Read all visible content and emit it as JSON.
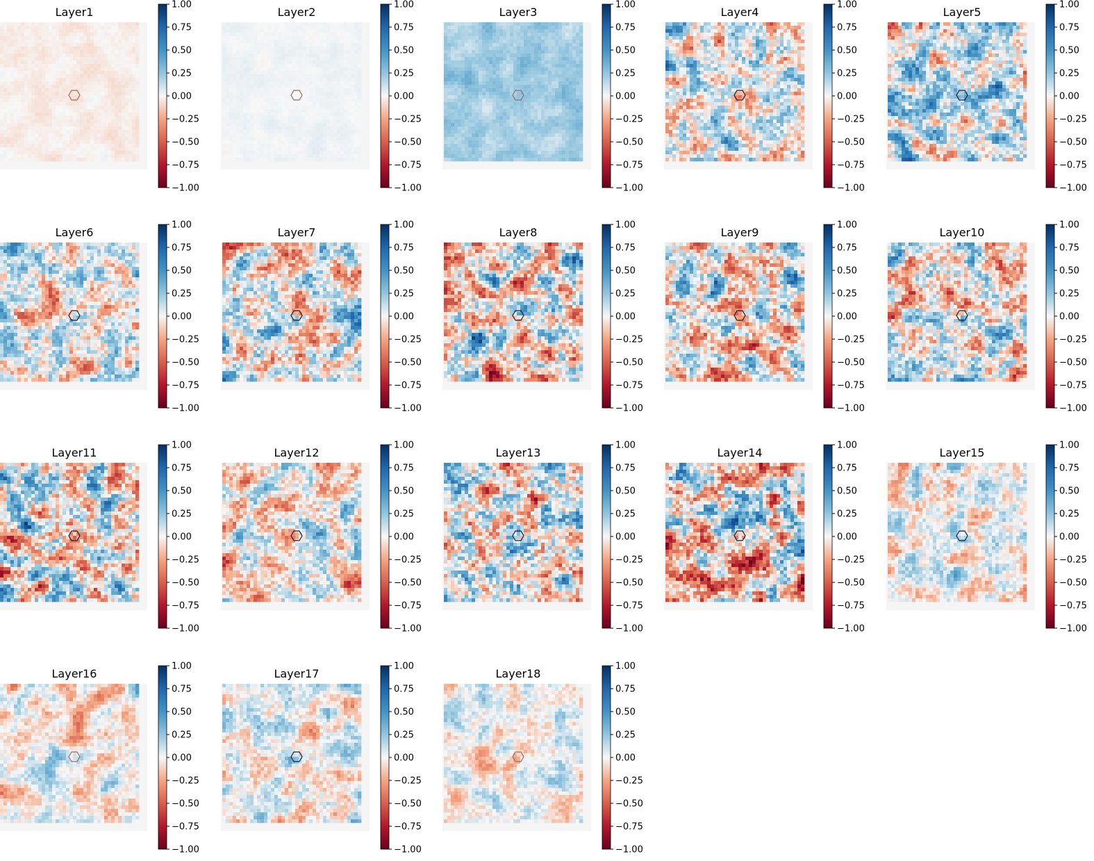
{
  "chart_data": {
    "type": "heatmap",
    "layout": {
      "rows": 4,
      "cols": 5
    },
    "colormap": "RdBu",
    "colors": {
      "negative_end": "#67001f",
      "mid": "#f7f7f7",
      "positive_end": "#053061"
    },
    "vmin": -1.0,
    "vmax": 1.0,
    "colorbar_ticks": [
      "1.00",
      "0.75",
      "0.50",
      "0.25",
      "0.00",
      "−0.25",
      "−0.50",
      "−0.75",
      "−1.00"
    ],
    "marker": "hexagon",
    "panels": [
      {
        "title": "Layer1",
        "intensity": 0.05,
        "bias": -0.1
      },
      {
        "title": "Layer2",
        "intensity": 0.03,
        "bias": 0.05
      },
      {
        "title": "Layer3",
        "intensity": 0.12,
        "bias": 0.6
      },
      {
        "title": "Layer4",
        "intensity": 0.55,
        "bias": 0.2
      },
      {
        "title": "Layer5",
        "intensity": 0.6,
        "bias": 0.4
      },
      {
        "title": "Layer6",
        "intensity": 0.55,
        "bias": 0.1
      },
      {
        "title": "Layer7",
        "intensity": 0.6,
        "bias": 0.0
      },
      {
        "title": "Layer8",
        "intensity": 0.7,
        "bias": -0.05
      },
      {
        "title": "Layer9",
        "intensity": 0.65,
        "bias": -0.05
      },
      {
        "title": "Layer10",
        "intensity": 0.65,
        "bias": -0.05
      },
      {
        "title": "Layer11",
        "intensity": 0.7,
        "bias": -0.1
      },
      {
        "title": "Layer12",
        "intensity": 0.5,
        "bias": -0.05
      },
      {
        "title": "Layer13",
        "intensity": 0.72,
        "bias": 0.0
      },
      {
        "title": "Layer14",
        "intensity": 0.75,
        "bias": 0.0
      },
      {
        "title": "Layer15",
        "intensity": 0.35,
        "bias": 0.0
      },
      {
        "title": "Layer16",
        "intensity": 0.3,
        "bias": -0.1
      },
      {
        "title": "Layer17",
        "intensity": 0.35,
        "bias": 0.0
      },
      {
        "title": "Layer18",
        "intensity": 0.28,
        "bias": 0.0
      }
    ]
  }
}
